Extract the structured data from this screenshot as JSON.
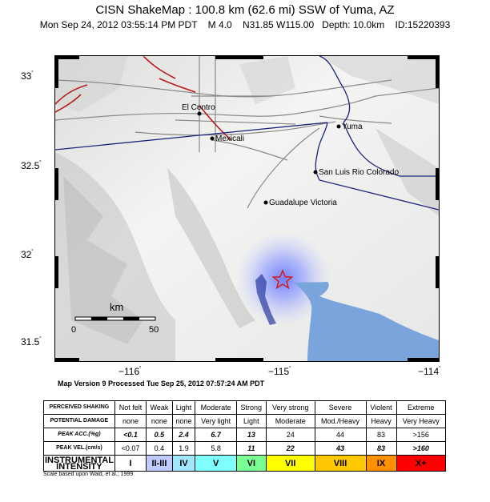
{
  "header": {
    "title": "CISN ShakeMap : 100.8 km (62.6 mi) SSW of Yuma, AZ",
    "subtitle": "Mon Sep 24, 2012 03:55:14 PM PDT    M 4.0    N31.85 W115.00   Depth: 10.0km    ID:15220393"
  },
  "map": {
    "lat_labels": [
      "33",
      "32.5",
      "32",
      "31.5"
    ],
    "lon_labels": [
      "−116",
      "−115",
      "−114"
    ],
    "degree_symbol": "˚",
    "cities": [
      {
        "name": "El Centro"
      },
      {
        "name": "Mexicali"
      },
      {
        "name": "Yuma"
      },
      {
        "name": "San Luis Rio Colorado"
      },
      {
        "name": "Guadalupe Victoria"
      }
    ],
    "scale_bar": {
      "unit": "km",
      "start": "0",
      "end": "50"
    },
    "epicenter_icon": "star-icon",
    "colors": {
      "water": "#7aa4dc",
      "fault": "#b81c1c",
      "border": "#1a237e",
      "road": "#8a8a8a",
      "shaking": "#7c8cff"
    }
  },
  "version_text": "Map Version 9 Processed Tue Sep 25, 2012 07:57:24 AM PDT",
  "legend": {
    "rows": [
      {
        "label": "PERCEIVED SHAKING",
        "cells": [
          "Not felt",
          "Weak",
          "Light",
          "Moderate",
          "Strong",
          "Very strong",
          "Severe",
          "Violent",
          "Extreme"
        ]
      },
      {
        "label": "POTENTIAL DAMAGE",
        "cells": [
          "none",
          "none",
          "none",
          "Very light",
          "Light",
          "Moderate",
          "Mod./Heavy",
          "Heavy",
          "Very Heavy"
        ]
      },
      {
        "label": "PEAK ACC.(%g)",
        "cells": [
          "<0.1",
          "0.5",
          "2.4",
          "6.7",
          "13",
          "24",
          "44",
          "83",
          ">156"
        ]
      },
      {
        "label": "PEAK VEL.(cm/s)",
        "cells": [
          "<0.07",
          "0.4",
          "1.9",
          "5.8",
          "11",
          "22",
          "43",
          "83",
          ">160"
        ]
      }
    ],
    "intensity_label": "INSTRUMENTAL INTENSITY",
    "intensity": [
      "I",
      "II-III",
      "IV",
      "V",
      "VI",
      "VII",
      "VIII",
      "IX",
      "X+"
    ],
    "intensity_colors": [
      "#ffffff",
      "#bfccff",
      "#a0e6ff",
      "#80ffff",
      "#7aff93",
      "#ffff00",
      "#ffc800",
      "#ff9100",
      "#ff0000"
    ],
    "scale_note": "Scale based upon Wald, et al.; 1999"
  }
}
